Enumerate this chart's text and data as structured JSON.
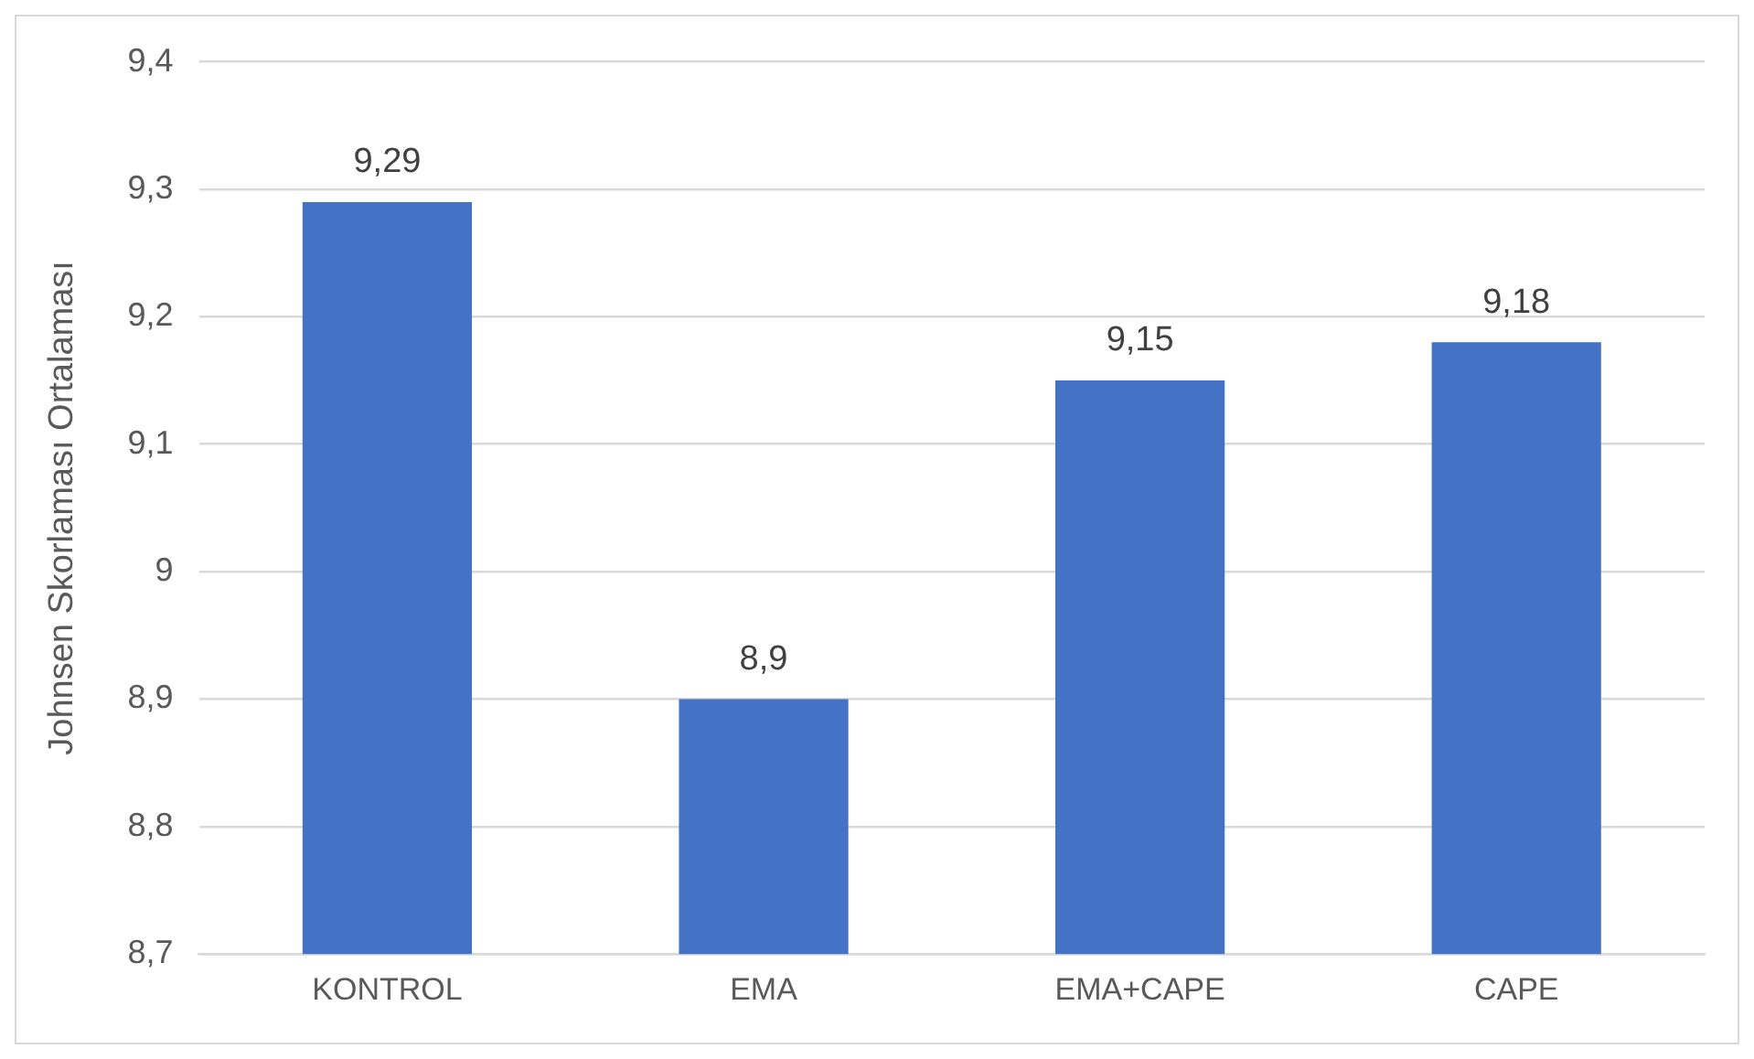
{
  "chart_data": {
    "type": "bar",
    "ylabel": "Johnsen Skorlaması Ortalaması",
    "categories": [
      "KONTROL",
      "EMA",
      "EMA+CAPE",
      "CAPE"
    ],
    "values": [
      9.29,
      8.9,
      9.15,
      9.18
    ],
    "value_labels": [
      "9,29",
      "8,9",
      "9,15",
      "9,18"
    ],
    "color": "#4472c4",
    "ylim": [
      8.7,
      9.4
    ],
    "yticks": [
      {
        "value": 8.7,
        "label": "8,7"
      },
      {
        "value": 8.8,
        "label": "8,8"
      },
      {
        "value": 8.9,
        "label": "8,9"
      },
      9,
      {
        "value": 9.1,
        "label": "9,1"
      },
      {
        "value": 9.2,
        "label": "9,2"
      },
      {
        "value": 9.3,
        "label": "9,3"
      },
      {
        "value": 9.4,
        "label": "9,4"
      }
    ],
    "grid": "y",
    "legend": false
  }
}
